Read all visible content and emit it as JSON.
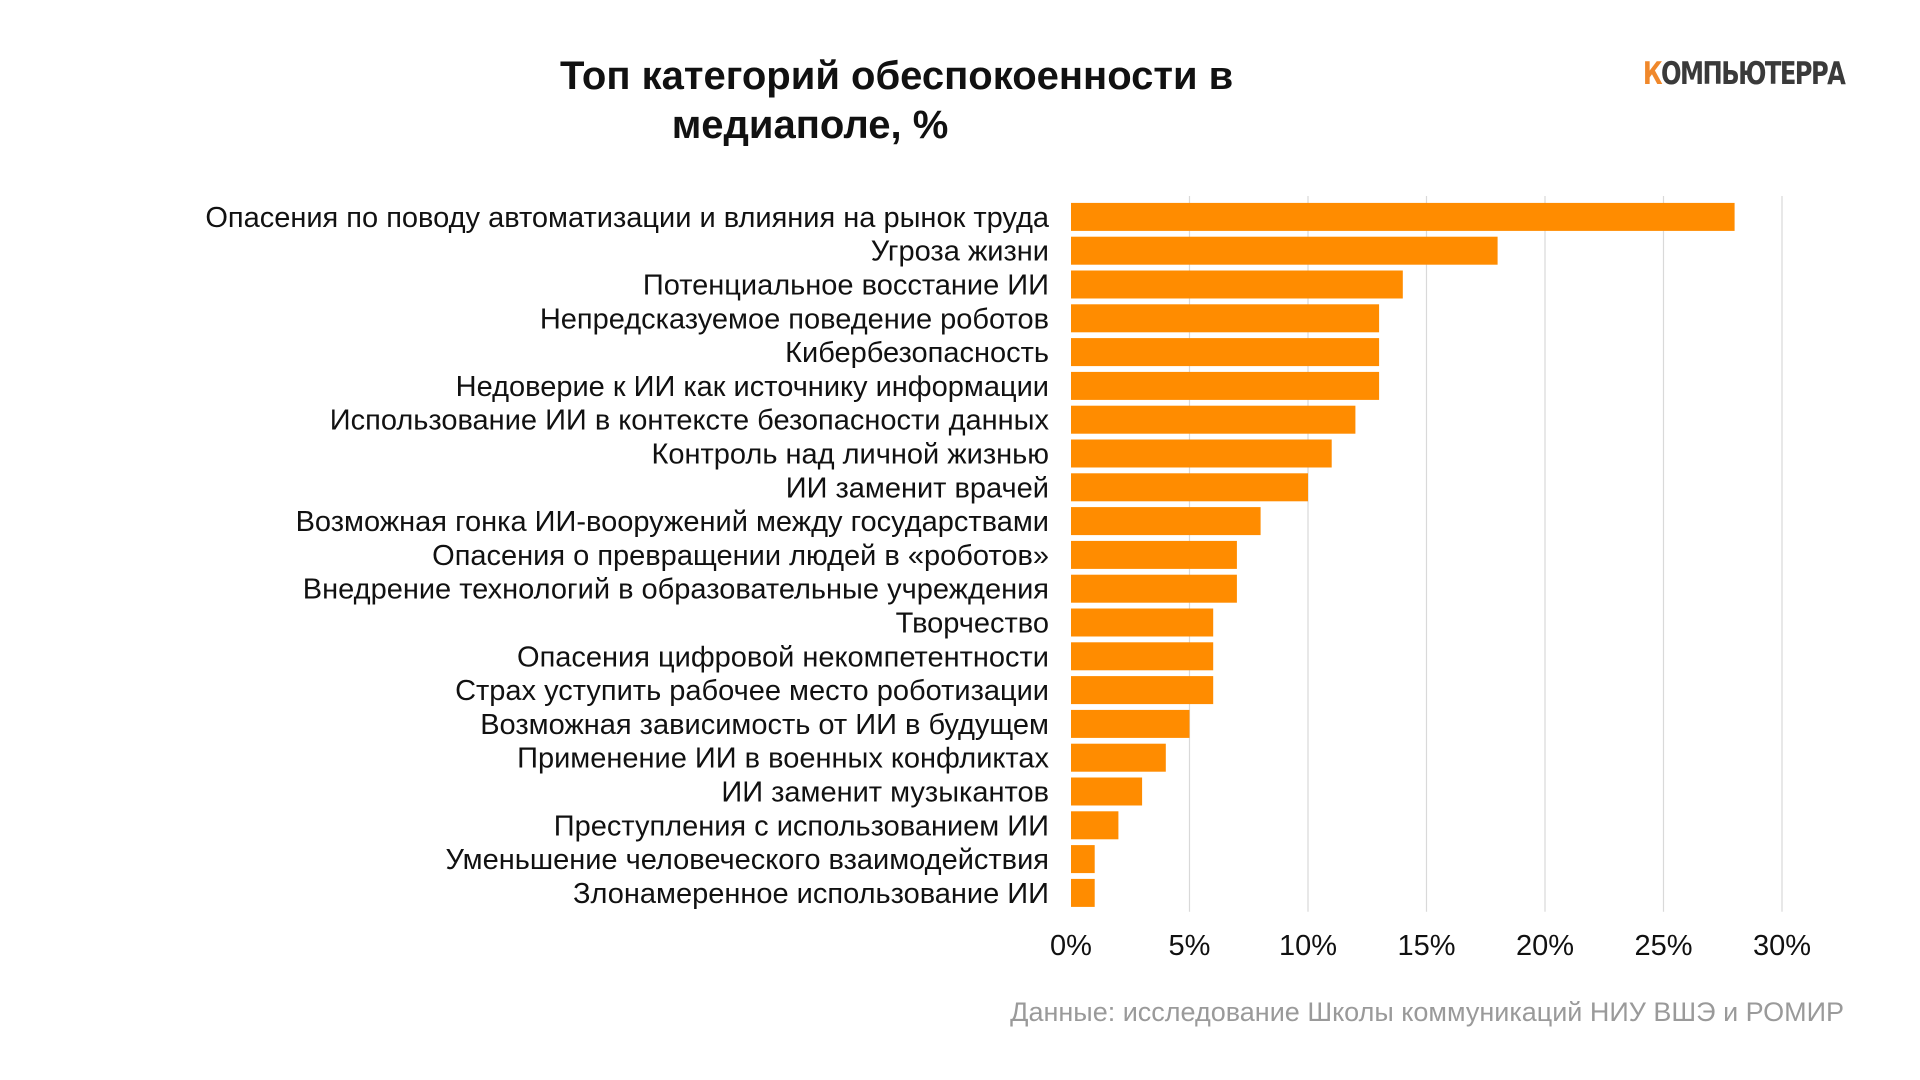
{
  "title_lines": [
    "Топ категорий обеспокоенности в",
    "медиаполе, %"
  ],
  "logo": {
    "first": "К",
    "rest": "ОМПЬЮТЕРРА"
  },
  "source": "Данные: исследование Школы коммуникаций НИУ ВШЭ и РОМИР",
  "colors": {
    "bar": "#ff8c00",
    "grid": "#d9d9d9",
    "logo_accent": "#f0882b",
    "logo_text": "#3a3a3a",
    "source_text": "#9a9a9a"
  },
  "chart_data": {
    "type": "bar",
    "orientation": "horizontal",
    "categories": [
      "Опасения по поводу автоматизации и влияния на рынок труда",
      "Угроза жизни",
      "Потенциальное восстание ИИ",
      "Непредсказуемое поведение роботов",
      "Кибербезопасность",
      "Недоверие к ИИ как источнику информации",
      "Использование ИИ в контексте безопасности данных",
      "Контроль над личной жизнью",
      "ИИ заменит врачей",
      "Возможная гонка ИИ-вооружений между государствами",
      "Опасения о превращении людей в «роботов»",
      "Внедрение технологий в образовательные учреждения",
      "Творчество",
      "Опасения цифровой некомпетентности",
      "Страх уступить рабочее место роботизации",
      "Возможная зависимость от ИИ в будущем",
      "Применение ИИ в военных конфликтах",
      "ИИ заменит музыкантов",
      "Преступления с использованием ИИ",
      "Уменьшение человеческого взаимодействия",
      "Злонамеренное использование ИИ"
    ],
    "values": [
      28,
      18,
      14,
      13,
      13,
      13,
      12,
      11,
      10,
      8,
      7,
      7,
      6,
      6,
      6,
      5,
      4,
      3,
      2,
      1,
      1
    ],
    "xlim": [
      0,
      30
    ],
    "xticks": [
      0,
      5,
      10,
      15,
      20,
      25,
      30
    ],
    "xtick_labels": [
      "0%",
      "5%",
      "10%",
      "15%",
      "20%",
      "25%",
      "30%"
    ],
    "grid": true,
    "legend": false
  }
}
